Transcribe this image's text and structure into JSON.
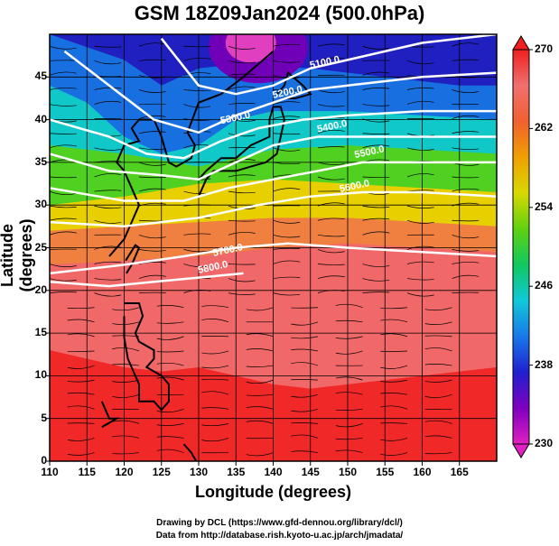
{
  "figure": {
    "title": "GSM 18Z09Jan2024 (500.0hPa)",
    "xlabel": "Longitude (degrees)",
    "ylabel": "Latitude  (degrees)",
    "credit_line1": "Drawing by DCL (https://www.gfd-dennou.org/library/dcl/)",
    "credit_line2": "Data from http://database.rish.kyoto-u.ac.jp/arch/jmadata/"
  },
  "map": {
    "lon_range": [
      110,
      170
    ],
    "lat_range": [
      0,
      50
    ],
    "lon_ticks": [
      110,
      115,
      120,
      125,
      130,
      135,
      140,
      145,
      150,
      155,
      160,
      165
    ],
    "lat_ticks": [
      0,
      5,
      10,
      15,
      20,
      25,
      30,
      35,
      40,
      45
    ],
    "lon_tick_labels": [
      "110",
      "115",
      "120",
      "125",
      "130",
      "135",
      "140",
      "145",
      "150",
      "155",
      "160",
      "165"
    ],
    "lat_tick_labels": [
      "0",
      "5",
      "10",
      "15",
      "20",
      "25",
      "30",
      "35",
      "40",
      "45"
    ],
    "grid": true
  },
  "colorbar": {
    "range": [
      230,
      270
    ],
    "tick_values": [
      230,
      238,
      246,
      254,
      262,
      270
    ],
    "tick_labels": [
      "230",
      "238",
      "246",
      "254",
      "262",
      "270"
    ],
    "stops": [
      "#e020c0",
      "#8000c0",
      "#2020d0",
      "#1878e8",
      "#10c8d8",
      "#10c860",
      "#60d010",
      "#d8d800",
      "#f0a000",
      "#f06030",
      "#f07070",
      "#f02020"
    ]
  },
  "contours": [
    {
      "label": "5100.0",
      "lat_at_label": 46.5
    },
    {
      "label": "5200.0",
      "lat_at_label": 43.5
    },
    {
      "label": "5300.0",
      "lat_at_label": 40.0
    },
    {
      "label": "5400.0",
      "lat_at_label": 39.0
    },
    {
      "label": "5500.0",
      "lat_at_label": 35.0
    },
    {
      "label": "5600.0",
      "lat_at_label": 31.0
    },
    {
      "label": "5700.0",
      "lat_at_label": 24.5
    },
    {
      "label": "5800.0",
      "lat_at_label": 21.0
    }
  ]
}
